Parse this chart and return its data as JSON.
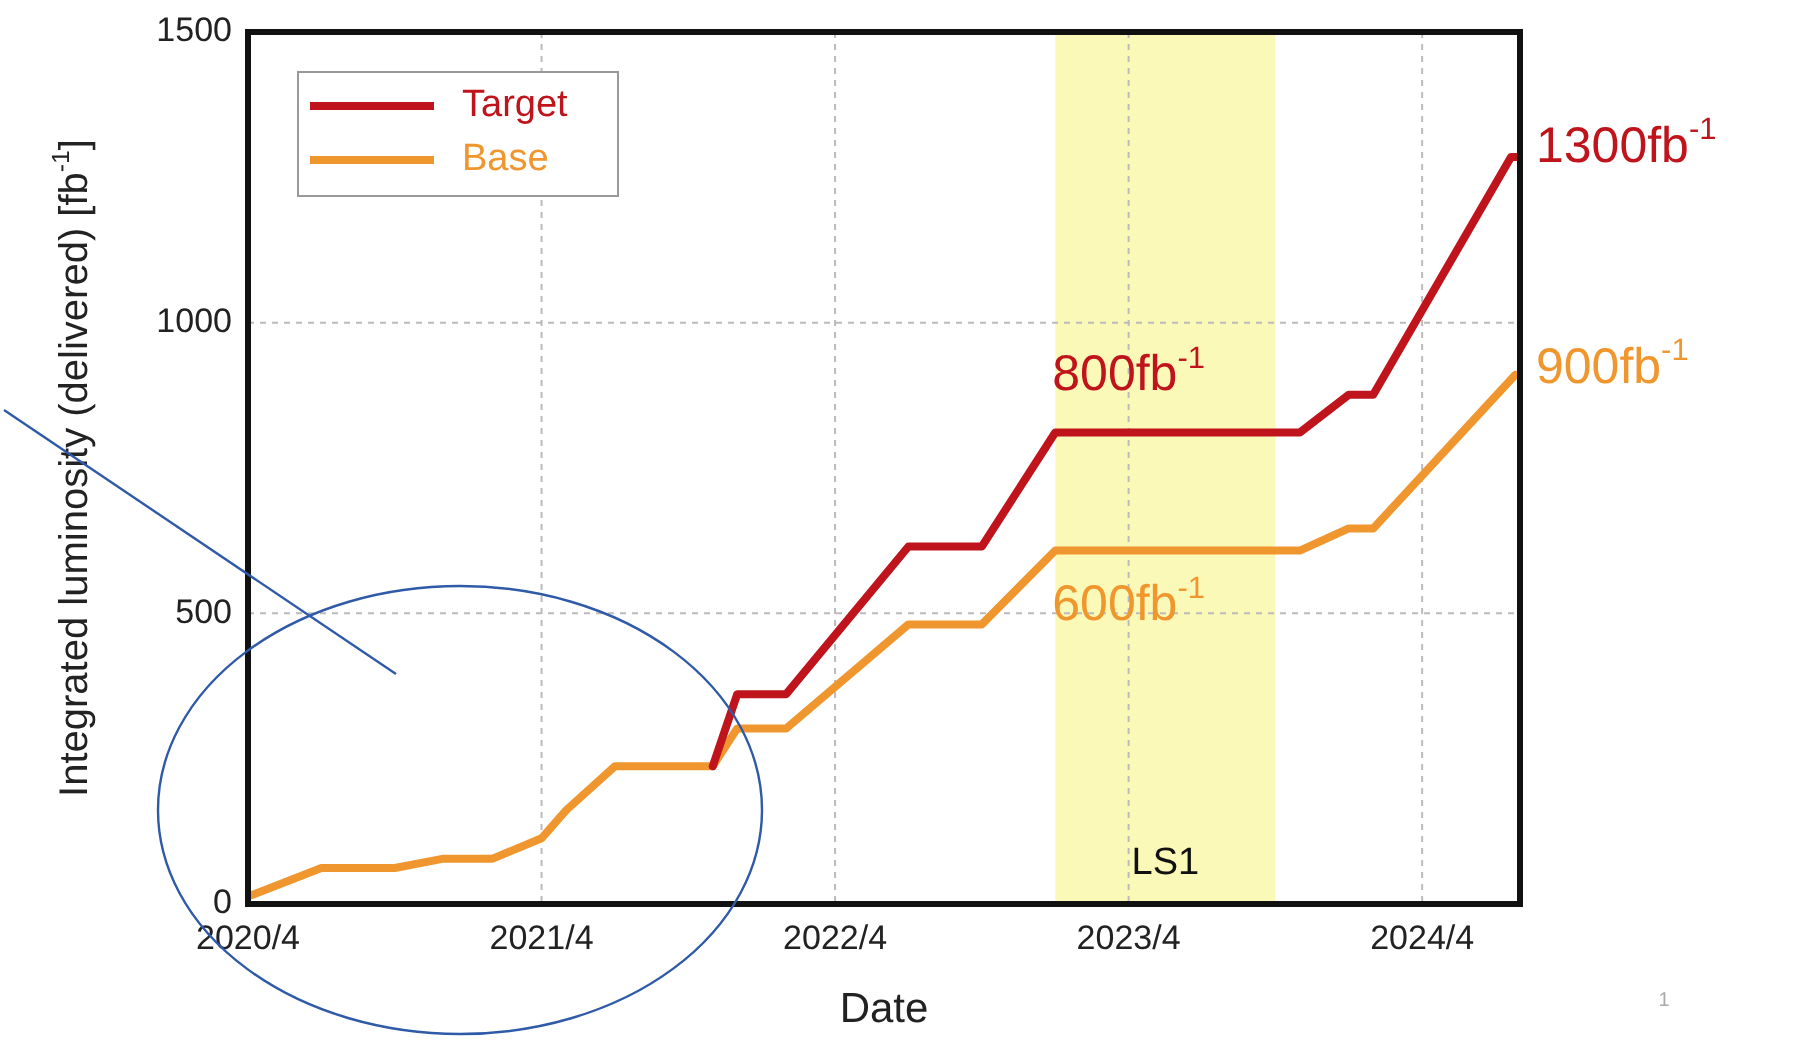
{
  "chart_data": {
    "type": "line",
    "xlabel": "Date",
    "ylabel": "Integrated luminosity (delivered) [fb$^{-1}$]",
    "xlim": [
      "2020-04",
      "2024-08"
    ],
    "ylim": [
      0,
      1500
    ],
    "xticks": [
      {
        "value": "2020-04",
        "label": "2020/4"
      },
      {
        "value": "2021-04",
        "label": "2021/4"
      },
      {
        "value": "2022-04",
        "label": "2022/4"
      },
      {
        "value": "2023-04",
        "label": "2023/4"
      },
      {
        "value": "2024-04",
        "label": "2024/4"
      }
    ],
    "yticks": [
      0,
      500,
      1000,
      1500
    ],
    "grid": true,
    "legend": "top left",
    "line_style": "solid",
    "marker": "none",
    "series": [
      {
        "name": "Target",
        "color": "#c0141c",
        "x": [
          "2021-11",
          "2021-12",
          "2022-02",
          "2022-07",
          "2022-10",
          "2023-01",
          "2023-11",
          "2024-01",
          "2024-02",
          "2024-07-20",
          "2024-08"
        ],
        "values": [
          237,
          361,
          361,
          615,
          615,
          811,
          811,
          876,
          876,
          1285,
          1285
        ]
      },
      {
        "name": "Base",
        "color": "#f0962e",
        "x": [
          "2020-04-05",
          "2020-07",
          "2020-10",
          "2020-12",
          "2021-02",
          "2021-04",
          "2021-05",
          "2021-07",
          "2021-11",
          "2021-12",
          "2022-02",
          "2022-07",
          "2022-10",
          "2023-01",
          "2023-11",
          "2024-01",
          "2024-02",
          "2024-07-25"
        ],
        "values": [
          15,
          62,
          62,
          78,
          78,
          113,
          161,
          237,
          237,
          302,
          302,
          481,
          481,
          608,
          608,
          646,
          646,
          910
        ]
      }
    ],
    "bands": [
      {
        "axis": "x",
        "from": "2023-01",
        "to": "2023-10",
        "label": "LS1",
        "color": "#fbf9b8"
      }
    ],
    "annotations": [
      {
        "text": "1300fb$^{-1}$",
        "x": "2024-08",
        "y": 1300
      },
      {
        "text": "900fb$^{-1}$",
        "x": "2024-08",
        "y": 920
      },
      {
        "text": "800fb$^{-1}$",
        "x": "2023-04",
        "y": 811
      },
      {
        "text": "600fb$^{-1}$",
        "x": "2023-04",
        "y": 608
      },
      "1"
    ]
  }
}
